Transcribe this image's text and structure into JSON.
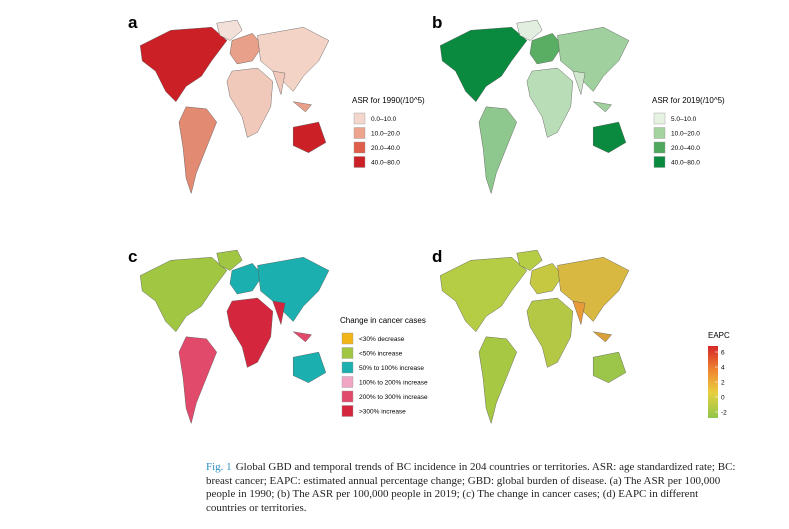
{
  "figure": {
    "panels": [
      {
        "letter": "a",
        "legend_title": "ASR for 1990(/10^5)",
        "items": [
          {
            "label": "0.0–10.0",
            "color": "#f3d7cc"
          },
          {
            "label": "10.0–20.0",
            "color": "#eca48f"
          },
          {
            "label": "20.0–40.0",
            "color": "#e05f4c"
          },
          {
            "label": "40.0–80.0",
            "color": "#cc2027"
          }
        ]
      },
      {
        "letter": "b",
        "legend_title": "ASR for 2019(/10^5)",
        "items": [
          {
            "label": "5.0–10.0",
            "color": "#e5f2e2"
          },
          {
            "label": "10.0–20.0",
            "color": "#a4d3a0"
          },
          {
            "label": "20.0–40.0",
            "color": "#4fa85e"
          },
          {
            "label": "40.0–80.0",
            "color": "#0a8a3f"
          }
        ]
      },
      {
        "letter": "c",
        "legend_title": "Change in cancer cases",
        "items": [
          {
            "label": "<30% decrease",
            "color": "#f2b518"
          },
          {
            "label": "<50% increase",
            "color": "#a0c642"
          },
          {
            "label": "50% to 100% increase",
            "color": "#1bafaf"
          },
          {
            "label": "100% to 200% increase",
            "color": "#f0a5c5"
          },
          {
            "label": "200% to 300% increase",
            "color": "#e24a6b"
          },
          {
            "label": ">300% increase",
            "color": "#d4273e"
          }
        ]
      },
      {
        "letter": "d",
        "legend_title": "EAPC",
        "ticks": [
          6,
          4,
          2,
          0,
          -2
        ]
      }
    ],
    "caption": {
      "label": "Fig. 1",
      "text": "Global GBD and temporal trends of BC incidence in 204 countries or territories. ASR: age standardized rate; BC: breast cancer; EAPC: estimated annual percentage change; GBD: global burden of disease. (a) The ASR per 100,000 people in 1990; (b) The ASR per 100,000 people in 2019; (c) The change in cancer cases; (d) EAPC in different countries or territories."
    }
  }
}
